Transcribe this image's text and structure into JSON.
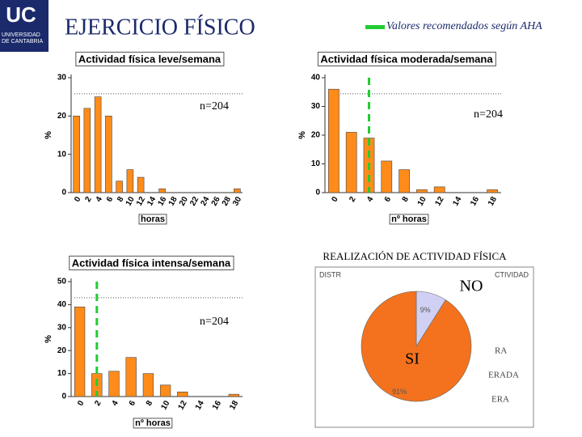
{
  "logo": {
    "mark": "UC",
    "name": "UNIVERSIDAD DE CANTABRIA"
  },
  "title": "EJERCICIO FÍSICO",
  "legend": "Valores recomendados según AHA",
  "chart_data": [
    {
      "type": "bar",
      "title": "Actividad física leve/semana",
      "xlabel": "horas",
      "ylabel": "%",
      "annotation": "n=204",
      "categories": [
        "0",
        "2",
        "4",
        "6",
        "8",
        "10",
        "12",
        "14",
        "16",
        "18",
        "20",
        "22",
        "24",
        "26",
        "28",
        "30"
      ],
      "values": [
        20,
        22,
        25,
        20,
        3,
        6,
        4,
        0,
        1,
        0,
        0,
        0,
        0,
        0,
        0,
        1
      ],
      "color": "#ff8c1a",
      "ylim": [
        0,
        30
      ],
      "yticks": [
        0,
        10,
        20,
        30
      ]
    },
    {
      "type": "bar",
      "title": "Actividad física moderada/semana",
      "xlabel": "nº horas",
      "ylabel": "%",
      "annotation": "n=204",
      "categories": [
        "0",
        "2",
        "4",
        "6",
        "8",
        "10",
        "12",
        "14",
        "16",
        "18"
      ],
      "values": [
        36,
        21,
        19,
        11,
        8,
        1,
        2,
        0,
        0,
        1
      ],
      "color": "#ff8c1a",
      "ylim": [
        0,
        40
      ],
      "yticks": [
        0,
        10,
        20,
        30,
        40
      ],
      "reference_category": "4",
      "reference_color": "#22cc33"
    },
    {
      "type": "bar",
      "title": "Actividad física intensa/semana",
      "xlabel": "nº horas",
      "ylabel": "%",
      "annotation": "n=204",
      "categories": [
        "0",
        "2",
        "4",
        "6",
        "8",
        "10",
        "12",
        "14",
        "16",
        "18"
      ],
      "values": [
        39,
        10,
        11,
        17,
        10,
        5,
        2,
        0,
        0,
        1
      ],
      "color": "#ff8c1a",
      "ylim": [
        0,
        50
      ],
      "yticks": [
        0,
        10,
        20,
        30,
        40,
        50
      ],
      "reference_category": "2",
      "reference_color": "#22cc33"
    },
    {
      "type": "pie",
      "title": "REALIZACIÓN DE ACTIVIDAD FÍSICA",
      "categories": [
        "NO",
        "SI"
      ],
      "values": [
        9,
        91
      ],
      "value_labels": [
        "9%",
        "91%"
      ],
      "colors": [
        "#d0d0f4",
        "#f4721e"
      ],
      "background_fragments": [
        "DISTR",
        "CTIVIDAD",
        "RA",
        "ERADA",
        "ERA"
      ]
    }
  ]
}
